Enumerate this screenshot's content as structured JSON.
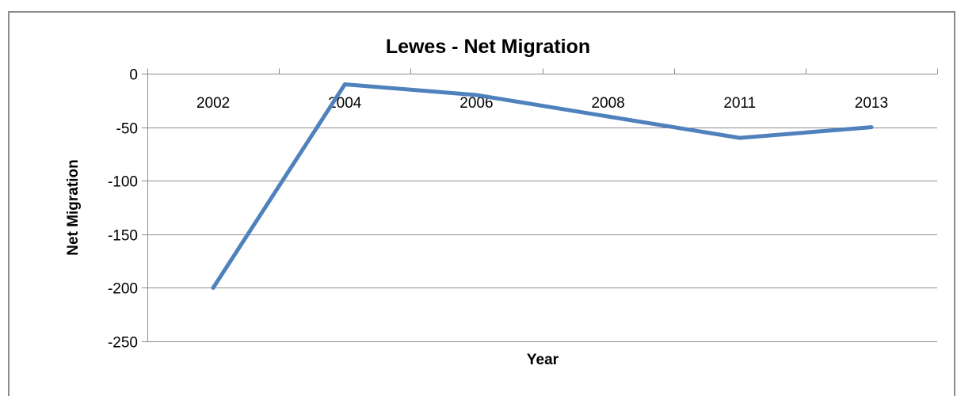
{
  "chart_data": {
    "type": "line",
    "title": "Lewes - Net Migration",
    "xlabel": "Year",
    "ylabel": "Net Migration",
    "categories": [
      "2002",
      "2004",
      "2006",
      "2008",
      "2011",
      "2013"
    ],
    "series": [
      {
        "values": [
          -200,
          -10,
          -20,
          -40,
          -60,
          -50
        ],
        "color": "#4f81bd"
      }
    ],
    "ylim": [
      -250,
      0
    ],
    "yticks": [
      "0",
      "-50",
      "-100",
      "-150",
      "-200",
      "-250"
    ],
    "ytick_values": [
      0,
      -50,
      -100,
      -150,
      -200,
      -250
    ],
    "x_tick_labels_position": "top",
    "grid": true,
    "legend": false,
    "colors": {
      "series": "#4f81bd",
      "grid": "#8c8c8c",
      "frame": "#8c8c8c"
    }
  }
}
